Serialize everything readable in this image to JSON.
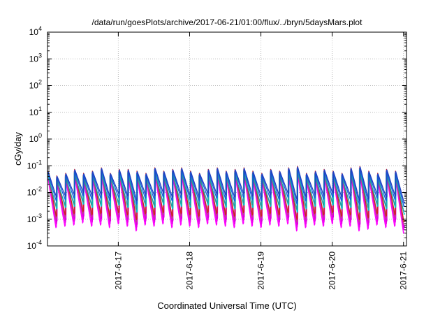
{
  "chart_data": {
    "type": "line",
    "title": "/data/run/goesPlots/archive/2017-06-21/01:00/flux/../bryn/5daysMars.plot",
    "xlabel": "Coordinated Universal Time (UTC)",
    "ylabel": "cGy/day",
    "yscale": "log",
    "ylim": [
      0.0001,
      10000
    ],
    "xlim": [
      "2017-06-16 00:10",
      "2017-06-21 01:00"
    ],
    "grid": true,
    "x_ticks": [
      "2017-6-17",
      "2017-6-18",
      "2017-6-19",
      "2017-6-20",
      "2017-6-21"
    ],
    "y_ticks": [
      {
        "base": "10",
        "exp": "-4"
      },
      {
        "base": "10",
        "exp": "-3"
      },
      {
        "base": "10",
        "exp": "-2"
      },
      {
        "base": "10",
        "exp": "-1"
      },
      {
        "base": "10",
        "exp": "0"
      },
      {
        "base": "10",
        "exp": "1"
      },
      {
        "base": "10",
        "exp": "2"
      },
      {
        "base": "10",
        "exp": "3"
      },
      {
        "base": "10",
        "exp": "4"
      }
    ],
    "waveform": {
      "sawtooth_period_hours": 3,
      "cycles": 40,
      "peak_values": [
        0.06,
        0.04,
        0.05,
        0.07,
        0.05,
        0.06,
        0.08,
        0.05,
        0.07,
        0.07,
        0.06,
        0.05,
        0.08,
        0.06,
        0.07,
        0.08,
        0.06,
        0.05,
        0.07,
        0.08,
        0.06,
        0.07,
        0.08,
        0.06,
        0.05,
        0.07,
        0.06,
        0.08,
        0.09,
        0.05,
        0.06,
        0.07,
        0.06,
        0.05,
        0.08,
        0.09,
        0.06,
        0.05,
        0.07,
        0.06
      ],
      "trough_values": [
        0.0008,
        0.0009,
        0.001,
        0.0012,
        0.0009,
        0.001,
        0.0008,
        0.0011,
        0.0009,
        0.0006,
        0.001,
        0.0009,
        0.0011,
        0.0008,
        0.001,
        0.0009,
        0.0008,
        0.0011,
        0.001,
        0.0009,
        0.0008,
        0.0011,
        0.0009,
        0.0008,
        0.001,
        0.0009,
        0.0011,
        0.0006,
        0.0008,
        0.001,
        0.0009,
        0.0011,
        0.0008,
        0.0009,
        0.0006,
        0.0007,
        0.001,
        0.0008,
        0.0009,
        0.0005
      ]
    },
    "series": [
      {
        "color": "#ff00ff",
        "peak_factor": 0.75,
        "trough_factor": 0.6
      },
      {
        "color": "#ee00ee",
        "peak_factor": 0.8,
        "trough_factor": 0.8
      },
      {
        "color": "#dd00dd",
        "peak_factor": 0.85,
        "trough_factor": 1.0
      },
      {
        "color": "#c04090",
        "peak_factor": 0.9,
        "trough_factor": 1.3
      },
      {
        "color": "#d02020",
        "peak_factor": 1.05,
        "trough_factor": 1.6
      },
      {
        "color": "#00c8c8",
        "peak_factor": 0.7,
        "trough_factor": 3.0
      },
      {
        "color": "#20a0a0",
        "peak_factor": 0.8,
        "trough_factor": 4.0
      },
      {
        "color": "#1060e0",
        "peak_factor": 0.95,
        "trough_factor": 6.0
      },
      {
        "color": "#2040c0",
        "peak_factor": 1.0,
        "trough_factor": 8.0
      }
    ]
  }
}
